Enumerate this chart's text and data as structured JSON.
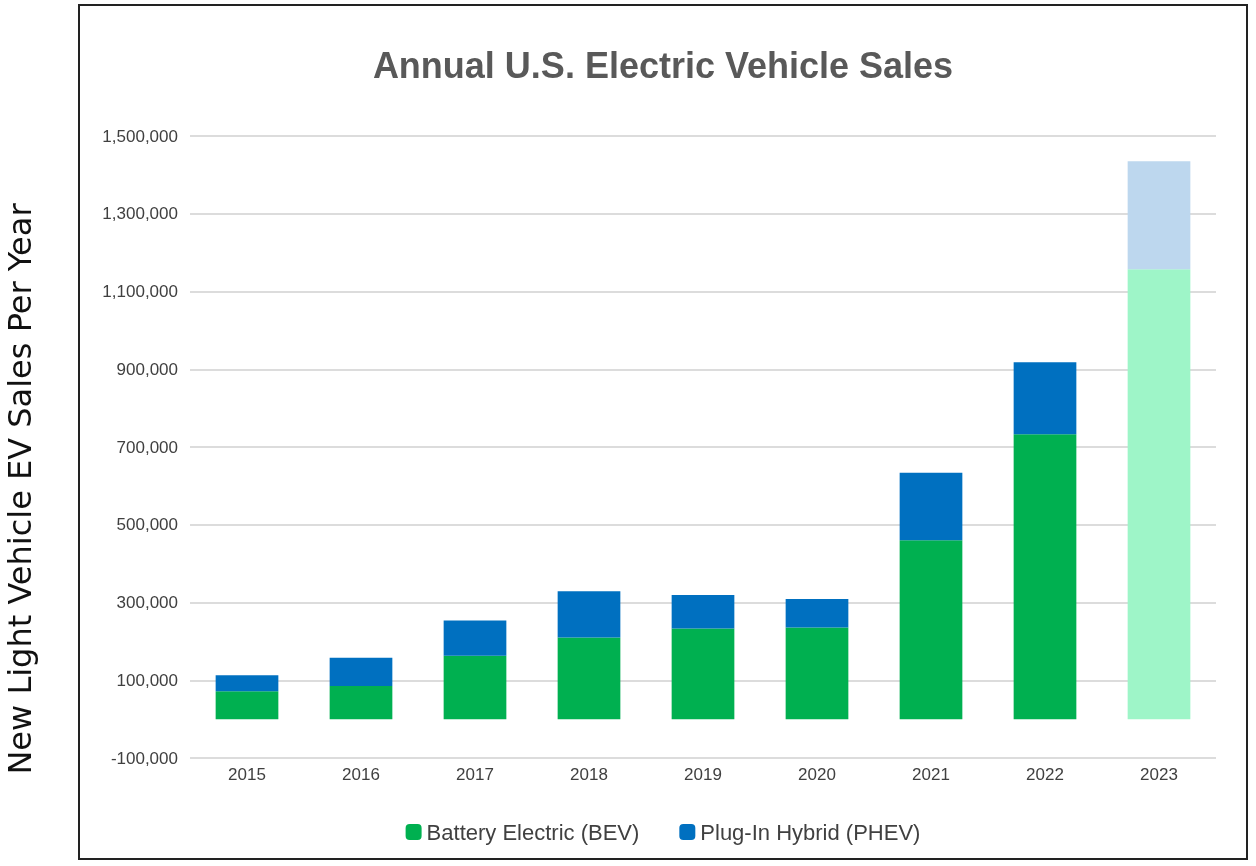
{
  "chart_data": {
    "type": "bar",
    "title": "Annual U.S. Electric Vehicle Sales",
    "ylabel": "New Light Vehicle EV Sales Per Year",
    "categories": [
      "2015",
      "2016",
      "2017",
      "2018",
      "2019",
      "2020",
      "2021",
      "2022",
      "2023"
    ],
    "stacked": true,
    "series": [
      {
        "name": "Battery Electric (BEV)",
        "color": "#00b050",
        "colors": [
          "#00b050",
          "#00b050",
          "#00b050",
          "#00b050",
          "#00b050",
          "#00b050",
          "#00b050",
          "#00b050",
          "#9ef5c8"
        ],
        "values": [
          72000,
          85000,
          163000,
          210000,
          233000,
          236000,
          460000,
          733000,
          1157000
        ]
      },
      {
        "name": "Plug-In Hybrid (PHEV)",
        "color": "#0070c0",
        "colors": [
          "#0070c0",
          "#0070c0",
          "#0070c0",
          "#0070c0",
          "#0070c0",
          "#0070c0",
          "#0070c0",
          "#0070c0",
          "#bdd7ee"
        ],
        "values": [
          41000,
          73000,
          91000,
          119000,
          86000,
          73000,
          174000,
          185000,
          278000
        ]
      }
    ],
    "ylim": [
      -100000,
      1500000
    ],
    "yticks": [
      {
        "value": -100000,
        "label": "-100,000"
      },
      {
        "value": 100000,
        "label": "100,000"
      },
      {
        "value": 300000,
        "label": "300,000"
      },
      {
        "value": 500000,
        "label": "500,000"
      },
      {
        "value": 700000,
        "label": "700,000"
      },
      {
        "value": 900000,
        "label": "900,000"
      },
      {
        "value": 1100000,
        "label": "1,100,000"
      },
      {
        "value": 1300000,
        "label": "1,300,000"
      },
      {
        "value": 1500000,
        "label": "1,500,000"
      }
    ],
    "grid": "y",
    "legend": "bottom"
  }
}
